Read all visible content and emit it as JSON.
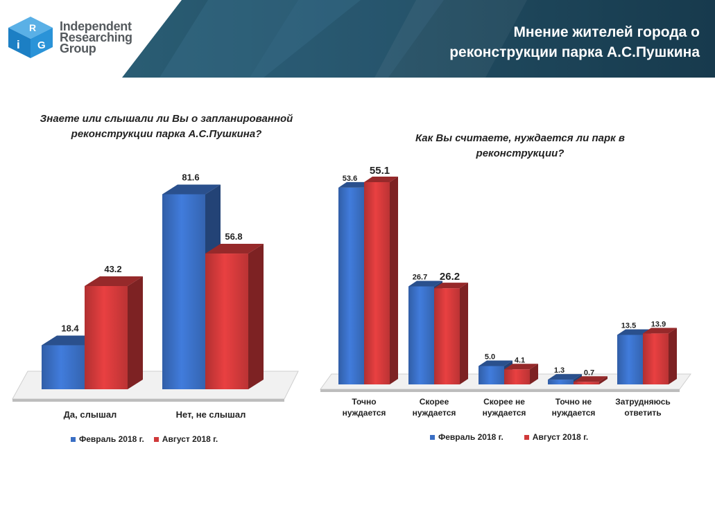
{
  "header": {
    "logo_lines": [
      "Independent",
      "Researching",
      "Group"
    ],
    "logo_mark": "iRG",
    "title_line1": "Мнение жителей города о",
    "title_line2": "реконструкции парка А.С.Пушкина"
  },
  "colors": {
    "feb": "#3a6fc4",
    "aug": "#d0393a",
    "header_bg": "#1e4a60"
  },
  "chart_data": [
    {
      "type": "bar",
      "title": "Знаете или слышали ли Вы о запланированной реконструкции парка А.С.Пушкина?",
      "title_lines": [
        "Знаете или слышали ли Вы о запланированной",
        "реконструкции парка А.С.Пушкина?"
      ],
      "categories": [
        "Да, слышал",
        "Нет, не слышал"
      ],
      "series": [
        {
          "name": "Февраль 2018 г.",
          "values": [
            18.4,
            81.6
          ]
        },
        {
          "name": "Август 2018 г.",
          "values": [
            43.2,
            56.8
          ]
        }
      ],
      "value_labels": [
        [
          "18.4",
          "81.6"
        ],
        [
          "43.2",
          "56.8"
        ]
      ],
      "ylim": [
        0,
        100
      ],
      "grid": false,
      "legend": "bottom"
    },
    {
      "type": "bar",
      "title": "Как Вы считаете, нуждается ли парк в реконструкции?",
      "title_lines": [
        "Как Вы считаете, нуждается ли парк в",
        "реконструкции?"
      ],
      "categories": [
        "Точно нуждается",
        "Скорее нуждается",
        "Скорее не нуждается",
        "Точно не нуждается",
        "Затрудняюсь ответить"
      ],
      "category_lines": [
        [
          "Точно",
          "нуждается"
        ],
        [
          "Скорее",
          "нуждается"
        ],
        [
          "Скорее не",
          "нуждается"
        ],
        [
          "Точно не",
          "нуждается"
        ],
        [
          "Затрудняюсь",
          "ответить"
        ]
      ],
      "series": [
        {
          "name": "Февраль 2018 г.",
          "values": [
            53.6,
            26.7,
            5.0,
            1.3,
            13.5
          ]
        },
        {
          "name": "Август 2018 г.",
          "values": [
            55.1,
            26.2,
            4.1,
            0.7,
            13.9
          ]
        }
      ],
      "value_labels": [
        [
          "53.6",
          "26.7",
          "5.0",
          "1.3",
          "13.5"
        ],
        [
          "55.1",
          "26.2",
          "4.1",
          "0.7",
          "13.9"
        ]
      ],
      "ylim": [
        0,
        60
      ],
      "grid": false,
      "legend": "bottom"
    }
  ]
}
